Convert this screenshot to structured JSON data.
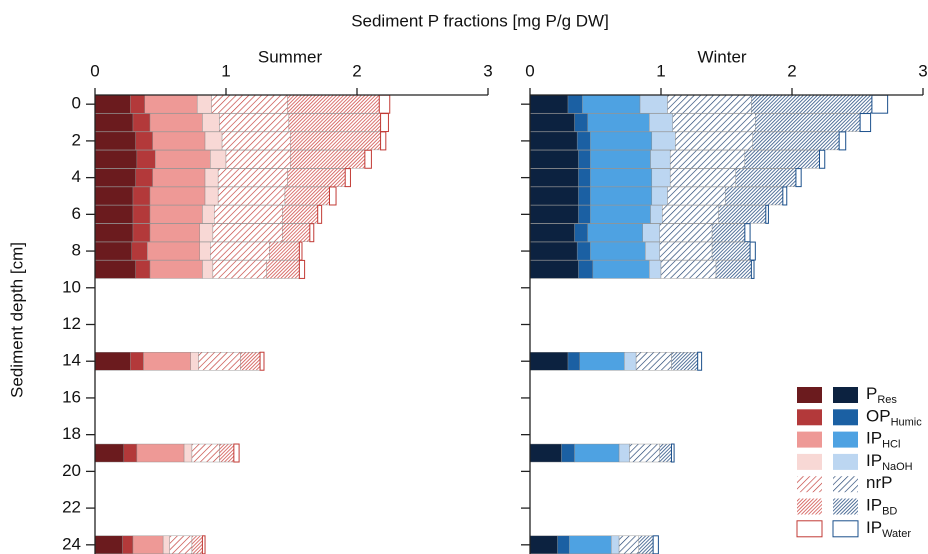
{
  "chart_data": [
    {
      "type": "bar",
      "orientation": "horizontal",
      "stacked": true,
      "xlabel": "Sediment P fractions [mg P/g DW]",
      "title": "Summer",
      "ylabel": "Sediment depth [cm]",
      "xlim": [
        0,
        3
      ],
      "xticks": [
        0,
        1,
        2,
        3
      ],
      "ylim": [
        -0.5,
        24.5
      ],
      "yticks": [
        0,
        2,
        4,
        6,
        8,
        10,
        12,
        14,
        16,
        18,
        20,
        22,
        24
      ],
      "y_inverted": true,
      "show_ytick_labels": true,
      "y": [
        0,
        1,
        2,
        3,
        4,
        5,
        6,
        7,
        8,
        9,
        14,
        19,
        24
      ],
      "legend": "lower right",
      "series": [
        {
          "name": "P",
          "subscript": "Res",
          "color": "#6b1b1e",
          "pattern": "solid",
          "values": [
            0.27,
            0.29,
            0.31,
            0.32,
            0.31,
            0.29,
            0.29,
            0.29,
            0.28,
            0.31,
            0.27,
            0.22,
            0.21
          ]
        },
        {
          "name": "OP",
          "subscript": "Humic",
          "color": "#b3393a",
          "pattern": "solid",
          "values": [
            0.11,
            0.13,
            0.13,
            0.14,
            0.13,
            0.13,
            0.13,
            0.13,
            0.12,
            0.11,
            0.1,
            0.1,
            0.08
          ]
        },
        {
          "name": "IP",
          "subscript": "HCl",
          "color": "#ee9996",
          "pattern": "solid",
          "values": [
            0.4,
            0.4,
            0.4,
            0.42,
            0.4,
            0.42,
            0.4,
            0.38,
            0.4,
            0.4,
            0.36,
            0.36,
            0.23
          ]
        },
        {
          "name": "IP",
          "subscript": "NaOH",
          "color": "#f8d8d5",
          "pattern": "solid",
          "values": [
            0.11,
            0.13,
            0.13,
            0.12,
            0.1,
            0.1,
            0.09,
            0.1,
            0.08,
            0.08,
            0.06,
            0.06,
            0.05
          ]
        },
        {
          "name": "nrP",
          "color": "#c23a35",
          "pattern": "hatch",
          "values": [
            0.58,
            0.53,
            0.52,
            0.49,
            0.53,
            0.51,
            0.52,
            0.53,
            0.45,
            0.41,
            0.32,
            0.21,
            0.17
          ]
        },
        {
          "name": "IP",
          "subscript": "BD",
          "color": "#d0504c",
          "pattern": "dense-hatch",
          "values": [
            0.7,
            0.7,
            0.69,
            0.57,
            0.44,
            0.34,
            0.27,
            0.21,
            0.23,
            0.25,
            0.15,
            0.11,
            0.08
          ]
        },
        {
          "name": "IP",
          "subscript": "Water",
          "color": "#c23a35",
          "pattern": "outline",
          "values": [
            0.08,
            0.06,
            0.04,
            0.05,
            0.04,
            0.05,
            0.03,
            0.03,
            0.02,
            0.04,
            0.03,
            0.04,
            0.02
          ]
        }
      ]
    },
    {
      "type": "bar",
      "orientation": "horizontal",
      "stacked": true,
      "title": "Winter",
      "xlim": [
        0,
        3
      ],
      "xticks": [
        0,
        1,
        2,
        3
      ],
      "ylim": [
        -0.5,
        24.5
      ],
      "yticks": [
        0,
        2,
        4,
        6,
        8,
        10,
        12,
        14,
        16,
        18,
        20,
        22,
        24
      ],
      "y_inverted": true,
      "show_ytick_labels": false,
      "y": [
        0,
        1,
        2,
        3,
        4,
        5,
        6,
        7,
        8,
        9,
        14,
        19,
        24
      ],
      "series": [
        {
          "color": "#0c2240",
          "pattern": "solid",
          "values": [
            0.29,
            0.34,
            0.36,
            0.37,
            0.37,
            0.37,
            0.37,
            0.34,
            0.36,
            0.37,
            0.29,
            0.24,
            0.21
          ]
        },
        {
          "color": "#1b60a3",
          "pattern": "solid",
          "values": [
            0.11,
            0.1,
            0.1,
            0.09,
            0.09,
            0.09,
            0.09,
            0.1,
            0.1,
            0.11,
            0.09,
            0.1,
            0.09
          ]
        },
        {
          "color": "#4ea2e2",
          "pattern": "solid",
          "values": [
            0.44,
            0.47,
            0.47,
            0.46,
            0.47,
            0.47,
            0.46,
            0.42,
            0.42,
            0.43,
            0.34,
            0.34,
            0.32
          ]
        },
        {
          "color": "#bcd6f1",
          "pattern": "solid",
          "values": [
            0.21,
            0.18,
            0.18,
            0.15,
            0.14,
            0.12,
            0.09,
            0.13,
            0.11,
            0.09,
            0.09,
            0.08,
            0.06
          ]
        },
        {
          "color": "#1b3e6e",
          "pattern": "hatch",
          "values": [
            0.64,
            0.63,
            0.59,
            0.57,
            0.5,
            0.44,
            0.43,
            0.4,
            0.4,
            0.42,
            0.27,
            0.23,
            0.15
          ]
        },
        {
          "color": "#2c5284",
          "pattern": "dense-hatch",
          "values": [
            0.92,
            0.8,
            0.66,
            0.57,
            0.46,
            0.44,
            0.36,
            0.25,
            0.29,
            0.27,
            0.2,
            0.09,
            0.11
          ]
        },
        {
          "color": "#1b508c",
          "pattern": "outline",
          "values": [
            0.12,
            0.08,
            0.05,
            0.04,
            0.04,
            0.03,
            0.02,
            0.04,
            0.04,
            0.02,
            0.03,
            0.02,
            0.04
          ]
        }
      ]
    }
  ]
}
